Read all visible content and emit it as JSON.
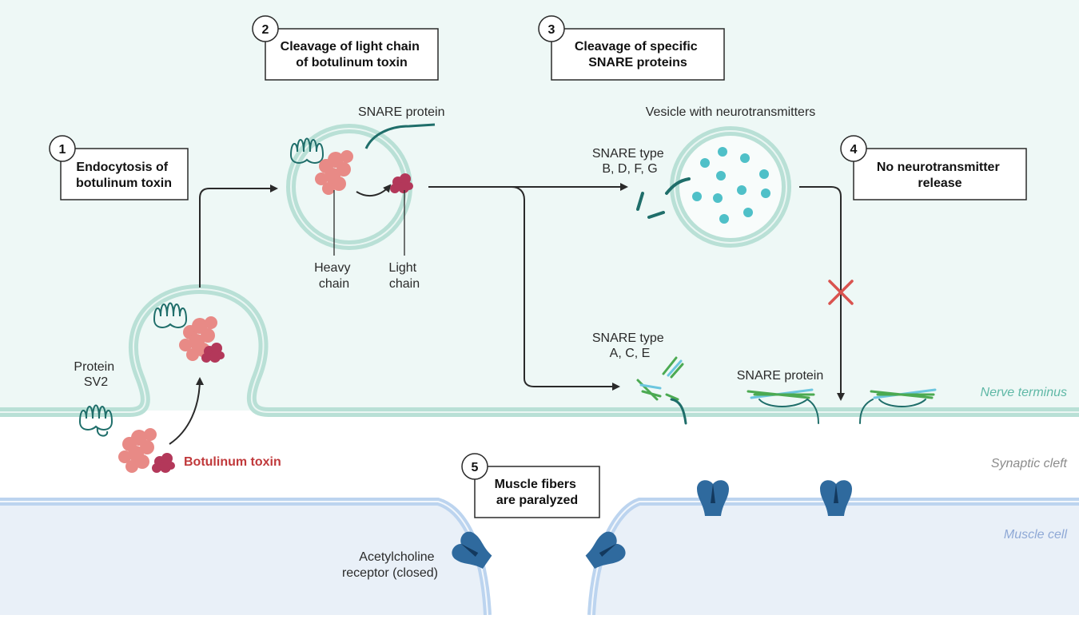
{
  "colors": {
    "nerve_bg": "#eef8f6",
    "membrane": "#b9e0d6",
    "muscle_bg": "#e9f0f8",
    "muscle_membrane": "#bcd4ef",
    "toxin_heavy": "#e88a86",
    "toxin_light": "#b3385a",
    "snare_teal": "#1f6e6a",
    "snare_green": "#4caa52",
    "snare_blue": "#6cc6df",
    "neurotransmitter": "#4fc0c8",
    "receptor": "#2f6a9e",
    "blocked_x": "#d9534f",
    "toxin_text": "#c0393b",
    "nerve_label": "#5fb8a6",
    "cleft_label": "#8c8c8c",
    "muscle_label": "#8fa9d6"
  },
  "steps": [
    {
      "number": "1",
      "lines": [
        "Endocytosis of",
        "botulinum toxin"
      ]
    },
    {
      "number": "2",
      "lines": [
        "Cleavage of light chain",
        "of botulinum toxin"
      ]
    },
    {
      "number": "3",
      "lines": [
        "Cleavage of specific",
        "SNARE proteins"
      ]
    },
    {
      "number": "4",
      "lines": [
        "No neurotransmitter",
        "release"
      ]
    },
    {
      "number": "5",
      "lines": [
        "Muscle fibers",
        "are paralyzed"
      ]
    }
  ],
  "labels": {
    "protein_sv2": [
      "Protein",
      "SV2"
    ],
    "botulinum_toxin": "Botulinum toxin",
    "snare_protein_top": "SNARE protein",
    "heavy_chain": [
      "Heavy",
      "chain"
    ],
    "light_chain": [
      "Light",
      "chain"
    ],
    "vesicle": "Vesicle with neurotransmitters",
    "snare_bdfg": [
      "SNARE type",
      "B, D, F, G"
    ],
    "snare_ace": [
      "SNARE type",
      "A, C, E"
    ],
    "snare_protein_bottom": "SNARE protein",
    "ach_receptor": [
      "Acetylcholine",
      "receptor (closed)"
    ]
  },
  "regions": {
    "nerve": "Nerve terminus",
    "cleft": "Synaptic cleft",
    "muscle": "Muscle cell"
  }
}
